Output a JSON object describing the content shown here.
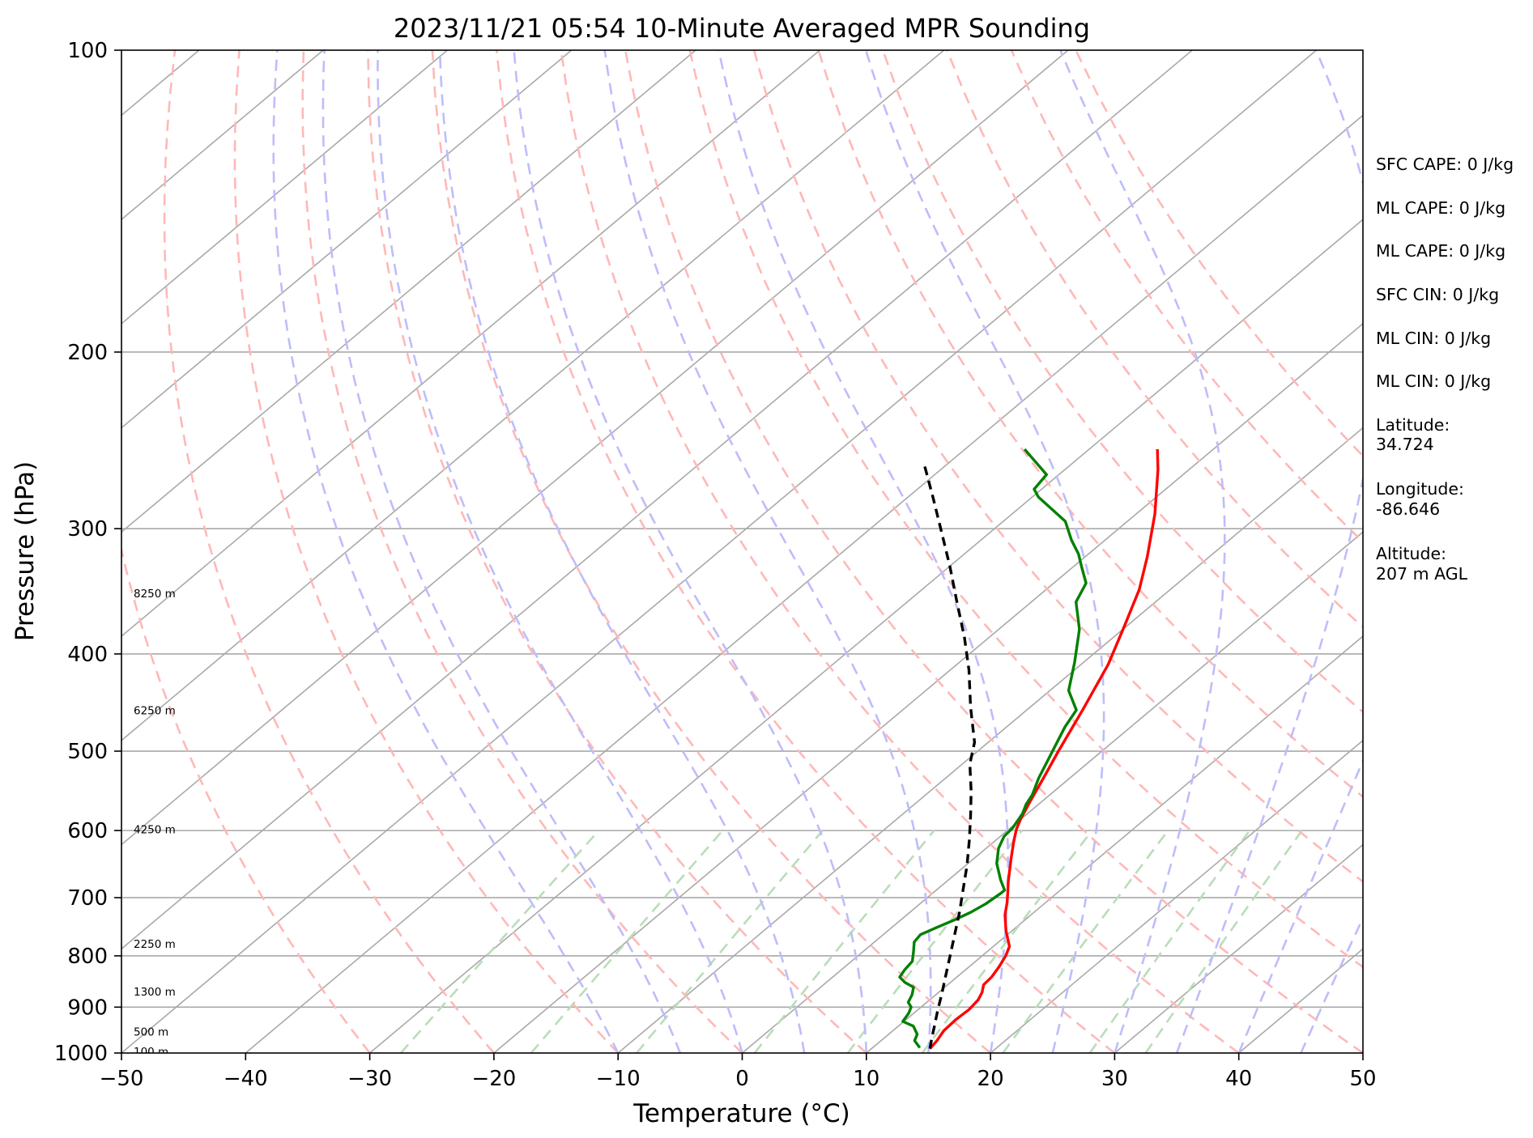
{
  "chart_data": {
    "type": "line",
    "subtype": "skew-t log-p",
    "title": "2023/11/21 05:54 10-Minute Averaged MPR Sounding",
    "xlabel": "Temperature (°C)",
    "ylabel": "Pressure (hPa)",
    "xlim": [
      -50,
      50
    ],
    "ylim": [
      1000,
      100
    ],
    "y_scale": "log",
    "grid": true,
    "xticks": [
      -50,
      -40,
      -30,
      -20,
      -10,
      0,
      10,
      20,
      30,
      40,
      50
    ],
    "xtick_labels": [
      "−50",
      "−40",
      "−30",
      "−20",
      "−10",
      "0",
      "10",
      "20",
      "30",
      "40",
      "50"
    ],
    "yticks": [
      1000,
      900,
      800,
      700,
      600,
      500,
      400,
      300,
      200,
      100
    ],
    "ytick_labels": [
      "1000",
      "900",
      "800",
      "700",
      "600",
      "500",
      "400",
      "300",
      "200",
      "100"
    ],
    "skew_isotherms": [
      -140,
      -130,
      -120,
      -110,
      -100,
      -90,
      -80,
      -70,
      -60,
      -50,
      -40,
      -30,
      -20,
      -10,
      0,
      10,
      20,
      30,
      40,
      50
    ],
    "dry_adiabats_C": [
      -30,
      -20,
      -10,
      0,
      10,
      20,
      30,
      40,
      50,
      60,
      70,
      80,
      90,
      100,
      110,
      120
    ],
    "moist_adiabats_C": [
      -10,
      -5,
      0,
      5,
      10,
      15,
      20,
      25,
      30,
      35,
      40,
      45
    ],
    "mixing_ratio_surface_temps_C": [
      -27.5,
      -17,
      -8.5,
      1,
      8.5,
      14.5,
      21,
      28,
      32.5
    ],
    "height_labels": [
      {
        "label": "100 m",
        "p": 996
      },
      {
        "label": "500 m",
        "p": 952
      },
      {
        "label": "1300 m",
        "p": 868
      },
      {
        "label": "2250 m",
        "p": 778
      },
      {
        "label": "4250 m",
        "p": 598
      },
      {
        "label": "6250 m",
        "p": 455
      },
      {
        "label": "8250 m",
        "p": 348
      }
    ],
    "series": [
      {
        "color": "#ff0000",
        "points": [
          {
            "t": 14.7,
            "p": 990
          },
          {
            "t": 14.5,
            "p": 972
          },
          {
            "t": 14.1,
            "p": 950
          },
          {
            "t": 14.0,
            "p": 927
          },
          {
            "t": 14.1,
            "p": 905
          },
          {
            "t": 13.9,
            "p": 885
          },
          {
            "t": 13.5,
            "p": 870
          },
          {
            "t": 12.9,
            "p": 855
          },
          {
            "t": 12.8,
            "p": 840
          },
          {
            "t": 12.4,
            "p": 820
          },
          {
            "t": 11.9,
            "p": 800
          },
          {
            "t": 11.3,
            "p": 783
          },
          {
            "t": 9.5,
            "p": 755
          },
          {
            "t": 7.9,
            "p": 728
          },
          {
            "t": 6.9,
            "p": 708
          },
          {
            "t": 6.0,
            "p": 692
          },
          {
            "t": 5.0,
            "p": 675
          },
          {
            "t": 3.0,
            "p": 640
          },
          {
            "t": 1.5,
            "p": 614
          },
          {
            "t": 0.6,
            "p": 598
          },
          {
            "t": 0.0,
            "p": 585
          },
          {
            "t": -1.0,
            "p": 560
          },
          {
            "t": -2.2,
            "p": 530
          },
          {
            "t": -3.5,
            "p": 500
          },
          {
            "t": -5.5,
            "p": 455
          },
          {
            "t": -7.8,
            "p": 410
          },
          {
            "t": -10.2,
            "p": 375
          },
          {
            "t": -12.5,
            "p": 345
          },
          {
            "t": -15.0,
            "p": 320
          },
          {
            "t": -18.5,
            "p": 290
          },
          {
            "t": -22.5,
            "p": 262
          },
          {
            "t": -24.5,
            "p": 250
          }
        ]
      },
      {
        "color": "#008000",
        "points": [
          {
            "t": 13.8,
            "p": 988
          },
          {
            "t": 12.7,
            "p": 972
          },
          {
            "t": 12.3,
            "p": 958
          },
          {
            "t": 11.2,
            "p": 940
          },
          {
            "t": 9.9,
            "p": 930
          },
          {
            "t": 9.6,
            "p": 913
          },
          {
            "t": 9.2,
            "p": 900
          },
          {
            "t": 8.5,
            "p": 890
          },
          {
            "t": 8.1,
            "p": 875
          },
          {
            "t": 7.5,
            "p": 860
          },
          {
            "t": 6.3,
            "p": 850
          },
          {
            "t": 5.4,
            "p": 840
          },
          {
            "t": 5.1,
            "p": 826
          },
          {
            "t": 4.9,
            "p": 810
          },
          {
            "t": 4.1,
            "p": 793
          },
          {
            "t": 3.2,
            "p": 775
          },
          {
            "t": 3.0,
            "p": 762
          },
          {
            "t": 3.6,
            "p": 750
          },
          {
            "t": 4.3,
            "p": 737
          },
          {
            "t": 4.9,
            "p": 724
          },
          {
            "t": 5.3,
            "p": 710
          },
          {
            "t": 5.5,
            "p": 693
          },
          {
            "t": 5.5,
            "p": 688
          },
          {
            "t": 4.2,
            "p": 672
          },
          {
            "t": 2.3,
            "p": 647
          },
          {
            "t": 1.0,
            "p": 625
          },
          {
            "t": 0.3,
            "p": 608
          },
          {
            "t": 0.2,
            "p": 597
          },
          {
            "t": -0.4,
            "p": 577
          },
          {
            "t": -1.0,
            "p": 565
          },
          {
            "t": -1.4,
            "p": 553
          },
          {
            "t": -2.5,
            "p": 532
          },
          {
            "t": -3.6,
            "p": 508
          },
          {
            "t": -5.3,
            "p": 473
          },
          {
            "t": -6.0,
            "p": 455
          },
          {
            "t": -8.5,
            "p": 435
          },
          {
            "t": -10.7,
            "p": 408
          },
          {
            "t": -13.5,
            "p": 378
          },
          {
            "t": -16.4,
            "p": 355
          },
          {
            "t": -17.4,
            "p": 340
          },
          {
            "t": -19.4,
            "p": 327
          },
          {
            "t": -20.8,
            "p": 318
          },
          {
            "t": -22.7,
            "p": 308
          },
          {
            "t": -25.0,
            "p": 295
          },
          {
            "t": -29.5,
            "p": 279
          },
          {
            "t": -30.6,
            "p": 274
          },
          {
            "t": -31.0,
            "p": 265
          },
          {
            "t": -35.2,
            "p": 250
          }
        ]
      },
      {
        "color": "#000000",
        "points": [
          {
            "t": 14.7,
            "p": 990
          },
          {
            "t": 13.9,
            "p": 968
          },
          {
            "t": 12.9,
            "p": 940
          },
          {
            "t": 11.7,
            "p": 908
          },
          {
            "t": 10.4,
            "p": 873
          },
          {
            "t": 9.0,
            "p": 838
          },
          {
            "t": 7.5,
            "p": 802
          },
          {
            "t": 5.8,
            "p": 763
          },
          {
            "t": 4.0,
            "p": 724
          },
          {
            "t": 2.1,
            "p": 687
          },
          {
            "t": 0.1,
            "p": 650
          },
          {
            "t": -2.1,
            "p": 614
          },
          {
            "t": -4.3,
            "p": 581
          },
          {
            "t": -6.7,
            "p": 548
          },
          {
            "t": -9.4,
            "p": 515
          },
          {
            "t": -11.1,
            "p": 490
          },
          {
            "t": -14.8,
            "p": 452
          },
          {
            "t": -18.5,
            "p": 415
          },
          {
            "t": -22.0,
            "p": 385
          },
          {
            "t": -26.0,
            "p": 355
          },
          {
            "t": -30.0,
            "p": 327
          },
          {
            "t": -34.0,
            "p": 302
          },
          {
            "t": -38.0,
            "p": 279
          },
          {
            "t": -42.2,
            "p": 257
          }
        ]
      }
    ],
    "annotations": [
      "SFC CAPE: 0 J/kg",
      "ML CAPE: 0 J/kg",
      "ML CAPE: 0 J/kg",
      "SFC CIN: 0 J/kg",
      "ML CIN: 0 J/kg",
      "ML CIN: 0 J/kg",
      "Latitude:",
      "34.724",
      "Longitude:",
      "-86.646",
      "Altitude:",
      "207 m AGL"
    ],
    "colors": {
      "temperature": "#ff0000",
      "dewpoint": "#008000",
      "parcel": "#000000",
      "isotherms": "#a9a9a9",
      "dry_adiabats": "#ffb8b8",
      "moist_adiabats": "#bdbdfb",
      "mixing_ratio": "#b9ddb9"
    }
  }
}
